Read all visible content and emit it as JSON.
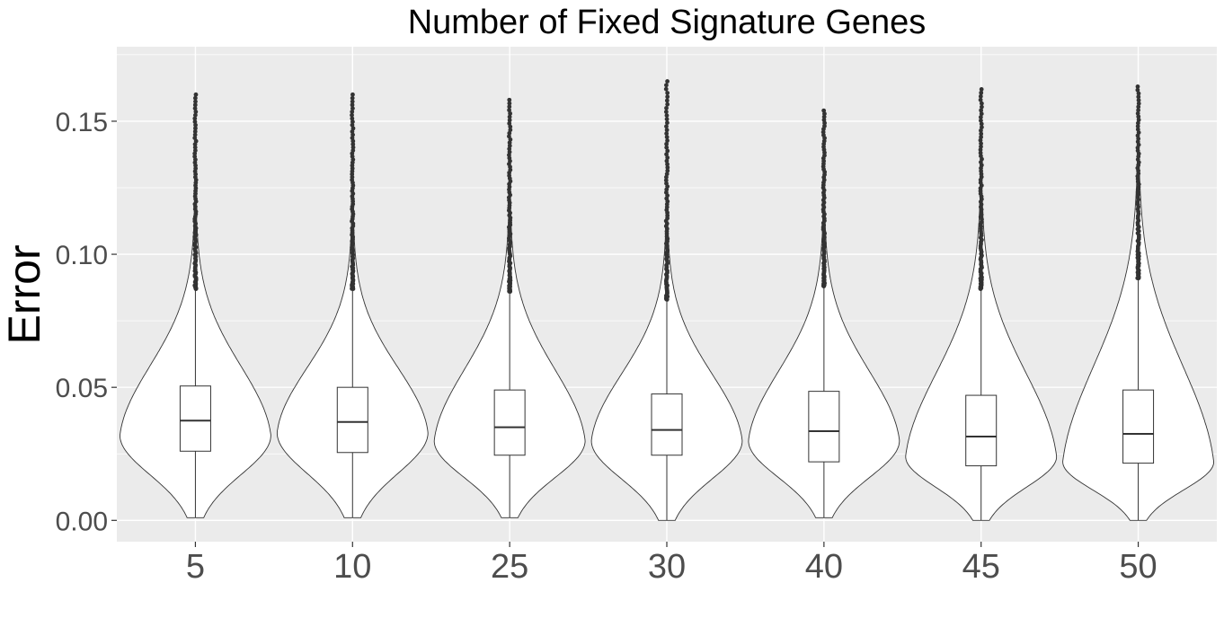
{
  "chart_data": {
    "type": "violin",
    "title": "Number of Fixed Signature Genes",
    "xlabel": "",
    "ylabel": "Error",
    "ylim": [
      -0.008,
      0.178
    ],
    "yticks": [
      0.0,
      0.05,
      0.1,
      0.15
    ],
    "ytick_labels": [
      "0.00",
      "0.05",
      "0.10",
      "0.15"
    ],
    "grid": true,
    "colors": {
      "panel": "#ebebeb",
      "grid": "#ffffff",
      "violin_fill": "#ffffff",
      "stroke": "#333333",
      "outlier": "#333333"
    },
    "categories": [
      "5",
      "10",
      "25",
      "30",
      "40",
      "45",
      "50"
    ],
    "groups": [
      {
        "label": "5",
        "min": 0.001,
        "q1": 0.026,
        "median": 0.0375,
        "q3": 0.0505,
        "whisker_high": 0.087,
        "max": 0.16,
        "mode": 0.032
      },
      {
        "label": "10",
        "min": 0.001,
        "q1": 0.0255,
        "median": 0.037,
        "q3": 0.05,
        "whisker_high": 0.087,
        "max": 0.16,
        "mode": 0.033
      },
      {
        "label": "25",
        "min": 0.001,
        "q1": 0.0245,
        "median": 0.035,
        "q3": 0.049,
        "whisker_high": 0.086,
        "max": 0.158,
        "mode": 0.03
      },
      {
        "label": "30",
        "min": 0.0,
        "q1": 0.0245,
        "median": 0.034,
        "q3": 0.0475,
        "whisker_high": 0.083,
        "max": 0.165,
        "mode": 0.03
      },
      {
        "label": "40",
        "min": 0.001,
        "q1": 0.022,
        "median": 0.0335,
        "q3": 0.0485,
        "whisker_high": 0.088,
        "max": 0.154,
        "mode": 0.03
      },
      {
        "label": "45",
        "min": 0.0,
        "q1": 0.0205,
        "median": 0.0315,
        "q3": 0.047,
        "whisker_high": 0.087,
        "max": 0.162,
        "mode": 0.024
      },
      {
        "label": "50",
        "min": 0.0,
        "q1": 0.0215,
        "median": 0.0325,
        "q3": 0.049,
        "whisker_high": 0.091,
        "max": 0.163,
        "mode": 0.022
      }
    ]
  }
}
